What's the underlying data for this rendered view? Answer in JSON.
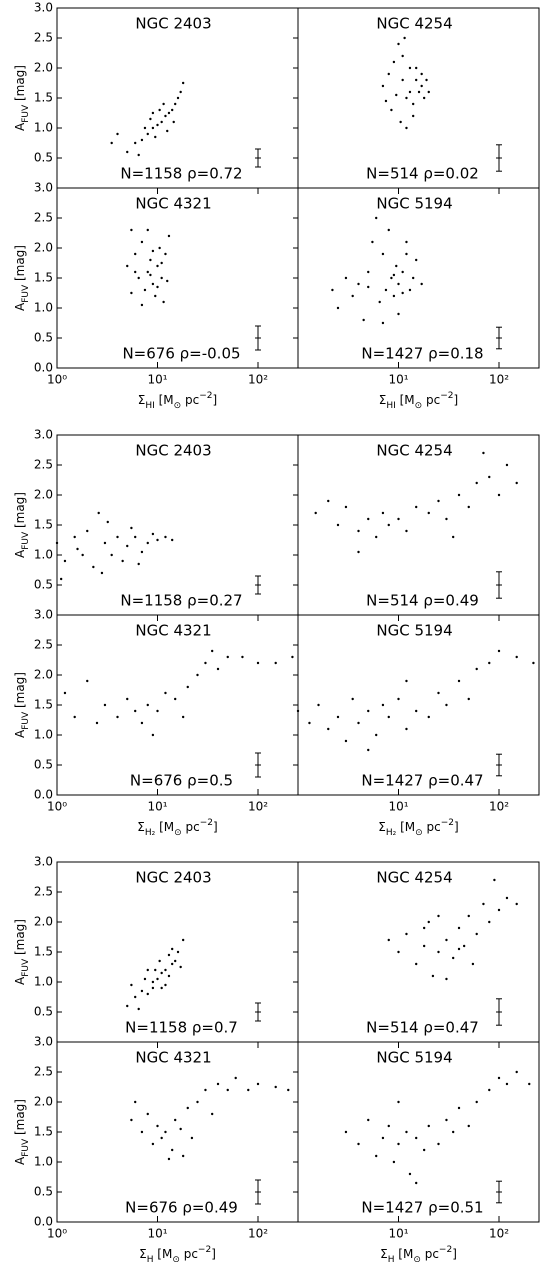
{
  "chart_data": [
    {
      "type": "scatter",
      "title": "NGC 2403",
      "annotation": "N=1158 ρ=0.72",
      "xscale": "log",
      "xlim": [
        1,
        250
      ],
      "ylim": [
        0,
        3
      ],
      "color": "#000000",
      "yticks": [
        0.5,
        {
          "value": 1,
          "label": "1.0"
        },
        1.5,
        {
          "value": 2,
          "label": "2.0"
        },
        2.5,
        {
          "value": 3,
          "label": "3.0"
        }
      ],
      "ylabel": [
        {
          "text": "A"
        },
        {
          "text": "FUV",
          "shift": "sub"
        },
        {
          "text": " [mag]"
        }
      ],
      "x": [
        5,
        6,
        7,
        8,
        9,
        10,
        11,
        12,
        13,
        14,
        15,
        17,
        18,
        6.5,
        8.5,
        9.5,
        10.5,
        12.5,
        7.5,
        11.5,
        4,
        3.5,
        14.5,
        9,
        16
      ],
      "y": [
        0.6,
        0.75,
        0.8,
        0.9,
        1,
        1.05,
        1.1,
        1.2,
        1.25,
        1.3,
        1.4,
        1.6,
        1.75,
        0.55,
        1.15,
        0.85,
        1.3,
        0.95,
        1,
        1.4,
        0.9,
        0.75,
        1.1,
        1.25,
        1.5
      ],
      "errorbar": {
        "x": 100,
        "y": 0.5,
        "err": 0.15
      }
    },
    {
      "type": "scatter",
      "title": "NGC 4254",
      "annotation": "N=514 ρ=0.02",
      "xscale": "log",
      "xlim": [
        1,
        250
      ],
      "ylim": [
        0,
        3
      ],
      "color": "#000000",
      "x": [
        7,
        8,
        9,
        10,
        11,
        12,
        13,
        14,
        15,
        16,
        17,
        18,
        20,
        8.5,
        10.5,
        12,
        14,
        15,
        17,
        11,
        9.5,
        13,
        7.5,
        19,
        11.5
      ],
      "y": [
        1.7,
        1.9,
        2.1,
        2.4,
        2.2,
        1.5,
        1.6,
        1.4,
        1.8,
        1.6,
        1.7,
        1.5,
        1.6,
        1.3,
        1.1,
        1,
        1.2,
        2,
        1.9,
        1.8,
        1.55,
        2,
        1.45,
        1.8,
        2.5
      ],
      "errorbar": {
        "x": 100,
        "y": 0.5,
        "err": 0.22
      }
    },
    {
      "type": "scatter",
      "title": "NGC 4321",
      "annotation": "N=676 ρ=-0.05",
      "xscale": "log",
      "xlim": [
        1,
        250
      ],
      "ylim": [
        0,
        3
      ],
      "color": "#000000",
      "yticks": [
        {
          "value": 0,
          "label": "0.0"
        },
        0.5,
        {
          "value": 1,
          "label": "1.0"
        },
        1.5,
        {
          "value": 2,
          "label": "2.0"
        },
        2.5,
        {
          "value": 3,
          "label": "3.0"
        }
      ],
      "xticks": [
        {
          "value": 1,
          "label": "10⁰"
        },
        {
          "value": 10,
          "label": "10¹"
        },
        {
          "value": 100,
          "label": "10²"
        }
      ],
      "ylabel": [
        {
          "text": "A"
        },
        {
          "text": "FUV",
          "shift": "sub"
        },
        {
          "text": " [mag]"
        }
      ],
      "xlabel": [
        {
          "text": "Σ"
        },
        {
          "text": "HI",
          "shift": "sub"
        },
        {
          "text": " [M"
        },
        {
          "text": "⊙",
          "shift": "sub"
        },
        {
          "text": " pc"
        },
        {
          "text": "−2",
          "shift": "super"
        },
        {
          "text": "]"
        }
      ],
      "x": [
        5,
        5.5,
        6,
        6.5,
        7,
        7.5,
        8,
        8.5,
        9,
        9.5,
        10,
        10.5,
        11,
        11.5,
        12,
        13,
        8,
        7,
        9,
        10,
        6,
        12.5,
        5.5,
        8.5,
        11
      ],
      "y": [
        1.7,
        2.3,
        1.9,
        1.5,
        2.1,
        1.3,
        1.6,
        1.8,
        1.4,
        1.2,
        1.7,
        2,
        1.5,
        1.1,
        1.9,
        2.2,
        2.3,
        1.05,
        1.95,
        1.35,
        1.6,
        1.45,
        1.25,
        1.55,
        1.75
      ],
      "errorbar": {
        "x": 100,
        "y": 0.5,
        "err": 0.2
      }
    },
    {
      "type": "scatter",
      "title": "NGC 5194",
      "annotation": "N=1427 ρ=0.18",
      "xscale": "log",
      "xlim": [
        1,
        250
      ],
      "ylim": [
        0,
        3
      ],
      "color": "#000000",
      "xticks": [
        {
          "value": 10,
          "label": "10¹"
        },
        {
          "value": 100,
          "label": "10²"
        }
      ],
      "xlabel": [
        {
          "text": "Σ"
        },
        {
          "text": "HI",
          "shift": "sub"
        },
        {
          "text": " [M"
        },
        {
          "text": "⊙",
          "shift": "sub"
        },
        {
          "text": " pc"
        },
        {
          "text": "−2",
          "shift": "super"
        },
        {
          "text": "]"
        }
      ],
      "x": [
        2.2,
        2.5,
        3,
        3.5,
        4,
        4.5,
        5,
        5.5,
        6,
        6.5,
        7,
        7.5,
        8,
        8.5,
        9,
        9.5,
        10,
        11,
        12,
        13,
        14,
        15,
        17,
        10,
        7,
        12,
        5,
        9,
        11
      ],
      "y": [
        1.3,
        1,
        1.5,
        1.2,
        1.4,
        0.8,
        1.6,
        2.1,
        2.5,
        1.1,
        1.9,
        1.3,
        2.3,
        1.5,
        1.2,
        1.7,
        1.4,
        1.6,
        1.9,
        1.3,
        1.5,
        1.8,
        1.4,
        0.9,
        0.75,
        2.1,
        1.35,
        1.55,
        1.25
      ],
      "errorbar": {
        "x": 100,
        "y": 0.5,
        "err": 0.18
      }
    },
    {
      "type": "scatter",
      "title": "NGC 2403",
      "annotation": "N=1158 ρ=0.27",
      "xscale": "log",
      "xlim": [
        1,
        250
      ],
      "ylim": [
        0,
        3
      ],
      "color": "#000000",
      "yticks": [
        0.5,
        {
          "value": 1,
          "label": "1.0"
        },
        1.5,
        {
          "value": 2,
          "label": "2.0"
        },
        2.5,
        {
          "value": 3,
          "label": "3.0"
        }
      ],
      "ylabel": [
        {
          "text": "A"
        },
        {
          "text": "FUV",
          "shift": "sub"
        },
        {
          "text": " [mag]"
        }
      ],
      "x": [
        1,
        1.2,
        1.5,
        1.8,
        2,
        2.3,
        2.6,
        3,
        3.5,
        4,
        4.5,
        5,
        6,
        7,
        8,
        9,
        10,
        12,
        14,
        1.1,
        2.8,
        5.5,
        3.2,
        6.5,
        1.6
      ],
      "y": [
        1.2,
        0.9,
        1.3,
        1,
        1.4,
        0.8,
        1.7,
        1.2,
        1,
        1.3,
        0.9,
        1.15,
        1.3,
        1.05,
        1.2,
        1.35,
        1.25,
        1.3,
        1.25,
        0.6,
        0.7,
        1.45,
        1.55,
        0.85,
        1.1
      ],
      "errorbar": {
        "x": 100,
        "y": 0.5,
        "err": 0.15
      }
    },
    {
      "type": "scatter",
      "title": "NGC 4254",
      "annotation": "N=514 ρ=0.49",
      "xscale": "log",
      "xlim": [
        1,
        250
      ],
      "ylim": [
        0,
        3
      ],
      "color": "#000000",
      "x": [
        1.5,
        2,
        2.5,
        3,
        4,
        5,
        6,
        7,
        8,
        10,
        12,
        15,
        20,
        25,
        30,
        40,
        50,
        60,
        80,
        100,
        120,
        150,
        70,
        4,
        35
      ],
      "y": [
        1.7,
        1.9,
        1.5,
        1.8,
        1.4,
        1.6,
        1.3,
        1.7,
        1.5,
        1.6,
        1.4,
        1.8,
        1.7,
        1.9,
        1.6,
        2,
        1.8,
        2.2,
        2.3,
        2,
        2.5,
        2.2,
        2.7,
        1.05,
        1.3
      ],
      "errorbar": {
        "x": 100,
        "y": 0.5,
        "err": 0.22
      }
    },
    {
      "type": "scatter",
      "title": "NGC 4321",
      "annotation": "N=676 ρ=0.5",
      "xscale": "log",
      "xlim": [
        1,
        250
      ],
      "ylim": [
        0,
        3
      ],
      "color": "#000000",
      "yticks": [
        {
          "value": 0,
          "label": "0.0"
        },
        0.5,
        {
          "value": 1,
          "label": "1.0"
        },
        1.5,
        {
          "value": 2,
          "label": "2.0"
        },
        2.5,
        {
          "value": 3,
          "label": "3.0"
        }
      ],
      "xticks": [
        {
          "value": 1,
          "label": "10⁰"
        },
        {
          "value": 10,
          "label": "10¹"
        },
        {
          "value": 100,
          "label": "10²"
        }
      ],
      "ylabel": [
        {
          "text": "A"
        },
        {
          "text": "FUV",
          "shift": "sub"
        },
        {
          "text": " [mag]"
        }
      ],
      "xlabel": [
        {
          "text": "Σ"
        },
        {
          "text": "H₂",
          "shift": "sub"
        },
        {
          "text": " [M"
        },
        {
          "text": "⊙",
          "shift": "sub"
        },
        {
          "text": " pc"
        },
        {
          "text": "−2",
          "shift": "super"
        },
        {
          "text": "]"
        }
      ],
      "x": [
        1.2,
        1.5,
        2,
        2.5,
        3,
        4,
        5,
        6,
        7,
        8,
        10,
        12,
        15,
        20,
        25,
        30,
        35,
        40,
        50,
        70,
        100,
        150,
        220,
        9,
        18
      ],
      "y": [
        1.7,
        1.3,
        1.9,
        1.2,
        1.5,
        1.3,
        1.6,
        1.4,
        1.2,
        1.5,
        1.4,
        1.7,
        1.6,
        1.8,
        2,
        2.2,
        2.4,
        2.1,
        2.3,
        2.3,
        2.2,
        2.2,
        2.3,
        1,
        1.3
      ],
      "errorbar": {
        "x": 100,
        "y": 0.5,
        "err": 0.2
      }
    },
    {
      "type": "scatter",
      "title": "NGC 5194",
      "annotation": "N=1427 ρ=0.47",
      "xscale": "log",
      "xlim": [
        1,
        250
      ],
      "ylim": [
        0,
        3
      ],
      "color": "#000000",
      "xticks": [
        {
          "value": 10,
          "label": "10¹"
        },
        {
          "value": 100,
          "label": "10²"
        }
      ],
      "xlabel": [
        {
          "text": "Σ"
        },
        {
          "text": "H₂",
          "shift": "sub"
        },
        {
          "text": " [M"
        },
        {
          "text": "⊙",
          "shift": "sub"
        },
        {
          "text": " pc"
        },
        {
          "text": "−2",
          "shift": "super"
        },
        {
          "text": "]"
        }
      ],
      "x": [
        1,
        1.3,
        1.6,
        2,
        2.5,
        3,
        3.5,
        4,
        5,
        6,
        7,
        8,
        10,
        12,
        15,
        20,
        25,
        30,
        40,
        50,
        60,
        80,
        100,
        150,
        220,
        5,
        12
      ],
      "y": [
        1.4,
        1.2,
        1.5,
        1.1,
        1.3,
        0.9,
        1.6,
        1.2,
        1.4,
        1,
        1.5,
        1.3,
        1.6,
        1.1,
        1.4,
        1.3,
        1.7,
        1.5,
        1.9,
        1.6,
        2.1,
        2.2,
        2.4,
        2.3,
        2.2,
        0.75,
        1.9
      ],
      "errorbar": {
        "x": 100,
        "y": 0.5,
        "err": 0.18
      }
    },
    {
      "type": "scatter",
      "title": "NGC 2403",
      "annotation": "N=1158 ρ=0.7",
      "xscale": "log",
      "xlim": [
        1,
        250
      ],
      "ylim": [
        0,
        3
      ],
      "color": "#000000",
      "yticks": [
        0.5,
        {
          "value": 1,
          "label": "1.0"
        },
        1.5,
        {
          "value": 2,
          "label": "2.0"
        },
        2.5,
        {
          "value": 3,
          "label": "3.0"
        }
      ],
      "ylabel": [
        {
          "text": "A"
        },
        {
          "text": "FUV",
          "shift": "sub"
        },
        {
          "text": " [mag]"
        }
      ],
      "x": [
        5,
        6,
        7,
        8,
        9,
        10,
        11,
        12,
        13,
        14,
        15,
        16,
        18,
        6.5,
        8,
        9,
        10.5,
        12,
        7.5,
        14,
        5.5,
        11,
        17,
        9.5,
        13
      ],
      "y": [
        0.6,
        0.75,
        0.85,
        0.8,
        1,
        1.05,
        1.15,
        1.2,
        1.1,
        1.3,
        1.35,
        1.5,
        1.7,
        0.55,
        1.2,
        0.9,
        1.35,
        0.95,
        1.05,
        1.55,
        0.95,
        0.9,
        1.25,
        1.2,
        1.45
      ],
      "errorbar": {
        "x": 100,
        "y": 0.5,
        "err": 0.15
      }
    },
    {
      "type": "scatter",
      "title": "NGC 4254",
      "annotation": "N=514 ρ=0.47",
      "xscale": "log",
      "xlim": [
        1,
        250
      ],
      "ylim": [
        0,
        3
      ],
      "color": "#000000",
      "x": [
        8,
        10,
        12,
        15,
        18,
        20,
        22,
        25,
        30,
        35,
        40,
        45,
        50,
        60,
        70,
        80,
        90,
        100,
        120,
        150,
        30,
        25,
        55,
        18,
        40
      ],
      "y": [
        1.7,
        1.5,
        1.8,
        1.3,
        1.6,
        2,
        1.1,
        1.5,
        1.7,
        1.4,
        1.9,
        1.6,
        2.1,
        1.8,
        2.3,
        2,
        2.7,
        2.2,
        2.4,
        2.3,
        1.05,
        2.1,
        1.3,
        1.9,
        1.55
      ],
      "errorbar": {
        "x": 100,
        "y": 0.5,
        "err": 0.22
      }
    },
    {
      "type": "scatter",
      "title": "NGC 4321",
      "annotation": "N=676 ρ=0.49",
      "xscale": "log",
      "xlim": [
        1,
        250
      ],
      "ylim": [
        0,
        3
      ],
      "color": "#000000",
      "yticks": [
        {
          "value": 0,
          "label": "0.0"
        },
        0.5,
        {
          "value": 1,
          "label": "1.0"
        },
        1.5,
        {
          "value": 2,
          "label": "2.0"
        },
        2.5,
        {
          "value": 3,
          "label": "3.0"
        }
      ],
      "xticks": [
        {
          "value": 1,
          "label": "10⁰"
        },
        {
          "value": 10,
          "label": "10¹"
        },
        {
          "value": 100,
          "label": "10²"
        }
      ],
      "ylabel": [
        {
          "text": "A"
        },
        {
          "text": "FUV",
          "shift": "sub"
        },
        {
          "text": " [mag]"
        }
      ],
      "xlabel": [
        {
          "text": "Σ"
        },
        {
          "text": "H",
          "shift": "sub"
        },
        {
          "text": " [M"
        },
        {
          "text": "⊙",
          "shift": "sub"
        },
        {
          "text": " pc"
        },
        {
          "text": "−2",
          "shift": "super"
        },
        {
          "text": "]"
        }
      ],
      "x": [
        5.5,
        6,
        7,
        8,
        9,
        10,
        11,
        12,
        14,
        15,
        17,
        20,
        22,
        25,
        30,
        35,
        40,
        50,
        60,
        80,
        100,
        150,
        200,
        13,
        18
      ],
      "y": [
        1.7,
        2,
        1.5,
        1.8,
        1.3,
        1.6,
        1.4,
        1.5,
        1.2,
        1.7,
        1.55,
        1.9,
        1.4,
        2,
        2.2,
        1.8,
        2.3,
        2.2,
        2.4,
        2.2,
        2.3,
        2.25,
        2.2,
        1.05,
        1.1
      ],
      "errorbar": {
        "x": 100,
        "y": 0.5,
        "err": 0.2
      }
    },
    {
      "type": "scatter",
      "title": "NGC 5194",
      "annotation": "N=1427 ρ=0.51",
      "xscale": "log",
      "xlim": [
        1,
        250
      ],
      "ylim": [
        0,
        3
      ],
      "color": "#000000",
      "xticks": [
        {
          "value": 10,
          "label": "10¹"
        },
        {
          "value": 100,
          "label": "10²"
        }
      ],
      "xlabel": [
        {
          "text": "Σ"
        },
        {
          "text": "H",
          "shift": "sub"
        },
        {
          "text": " [M"
        },
        {
          "text": "⊙",
          "shift": "sub"
        },
        {
          "text": " pc"
        },
        {
          "text": "−2",
          "shift": "super"
        },
        {
          "text": "]"
        }
      ],
      "x": [
        3,
        4,
        5,
        6,
        7,
        8,
        9,
        10,
        12,
        13,
        15,
        18,
        20,
        25,
        30,
        35,
        40,
        50,
        60,
        80,
        100,
        120,
        150,
        200,
        15,
        10
      ],
      "y": [
        1.5,
        1.3,
        1.7,
        1.1,
        1.4,
        1.6,
        1,
        1.3,
        1.5,
        0.8,
        1.4,
        1.2,
        1.6,
        1.3,
        1.7,
        1.5,
        1.9,
        1.6,
        2,
        2.2,
        2.4,
        2.3,
        2.5,
        2.3,
        0.65,
        2
      ],
      "errorbar": {
        "x": 100,
        "y": 0.5,
        "err": 0.18
      }
    }
  ]
}
